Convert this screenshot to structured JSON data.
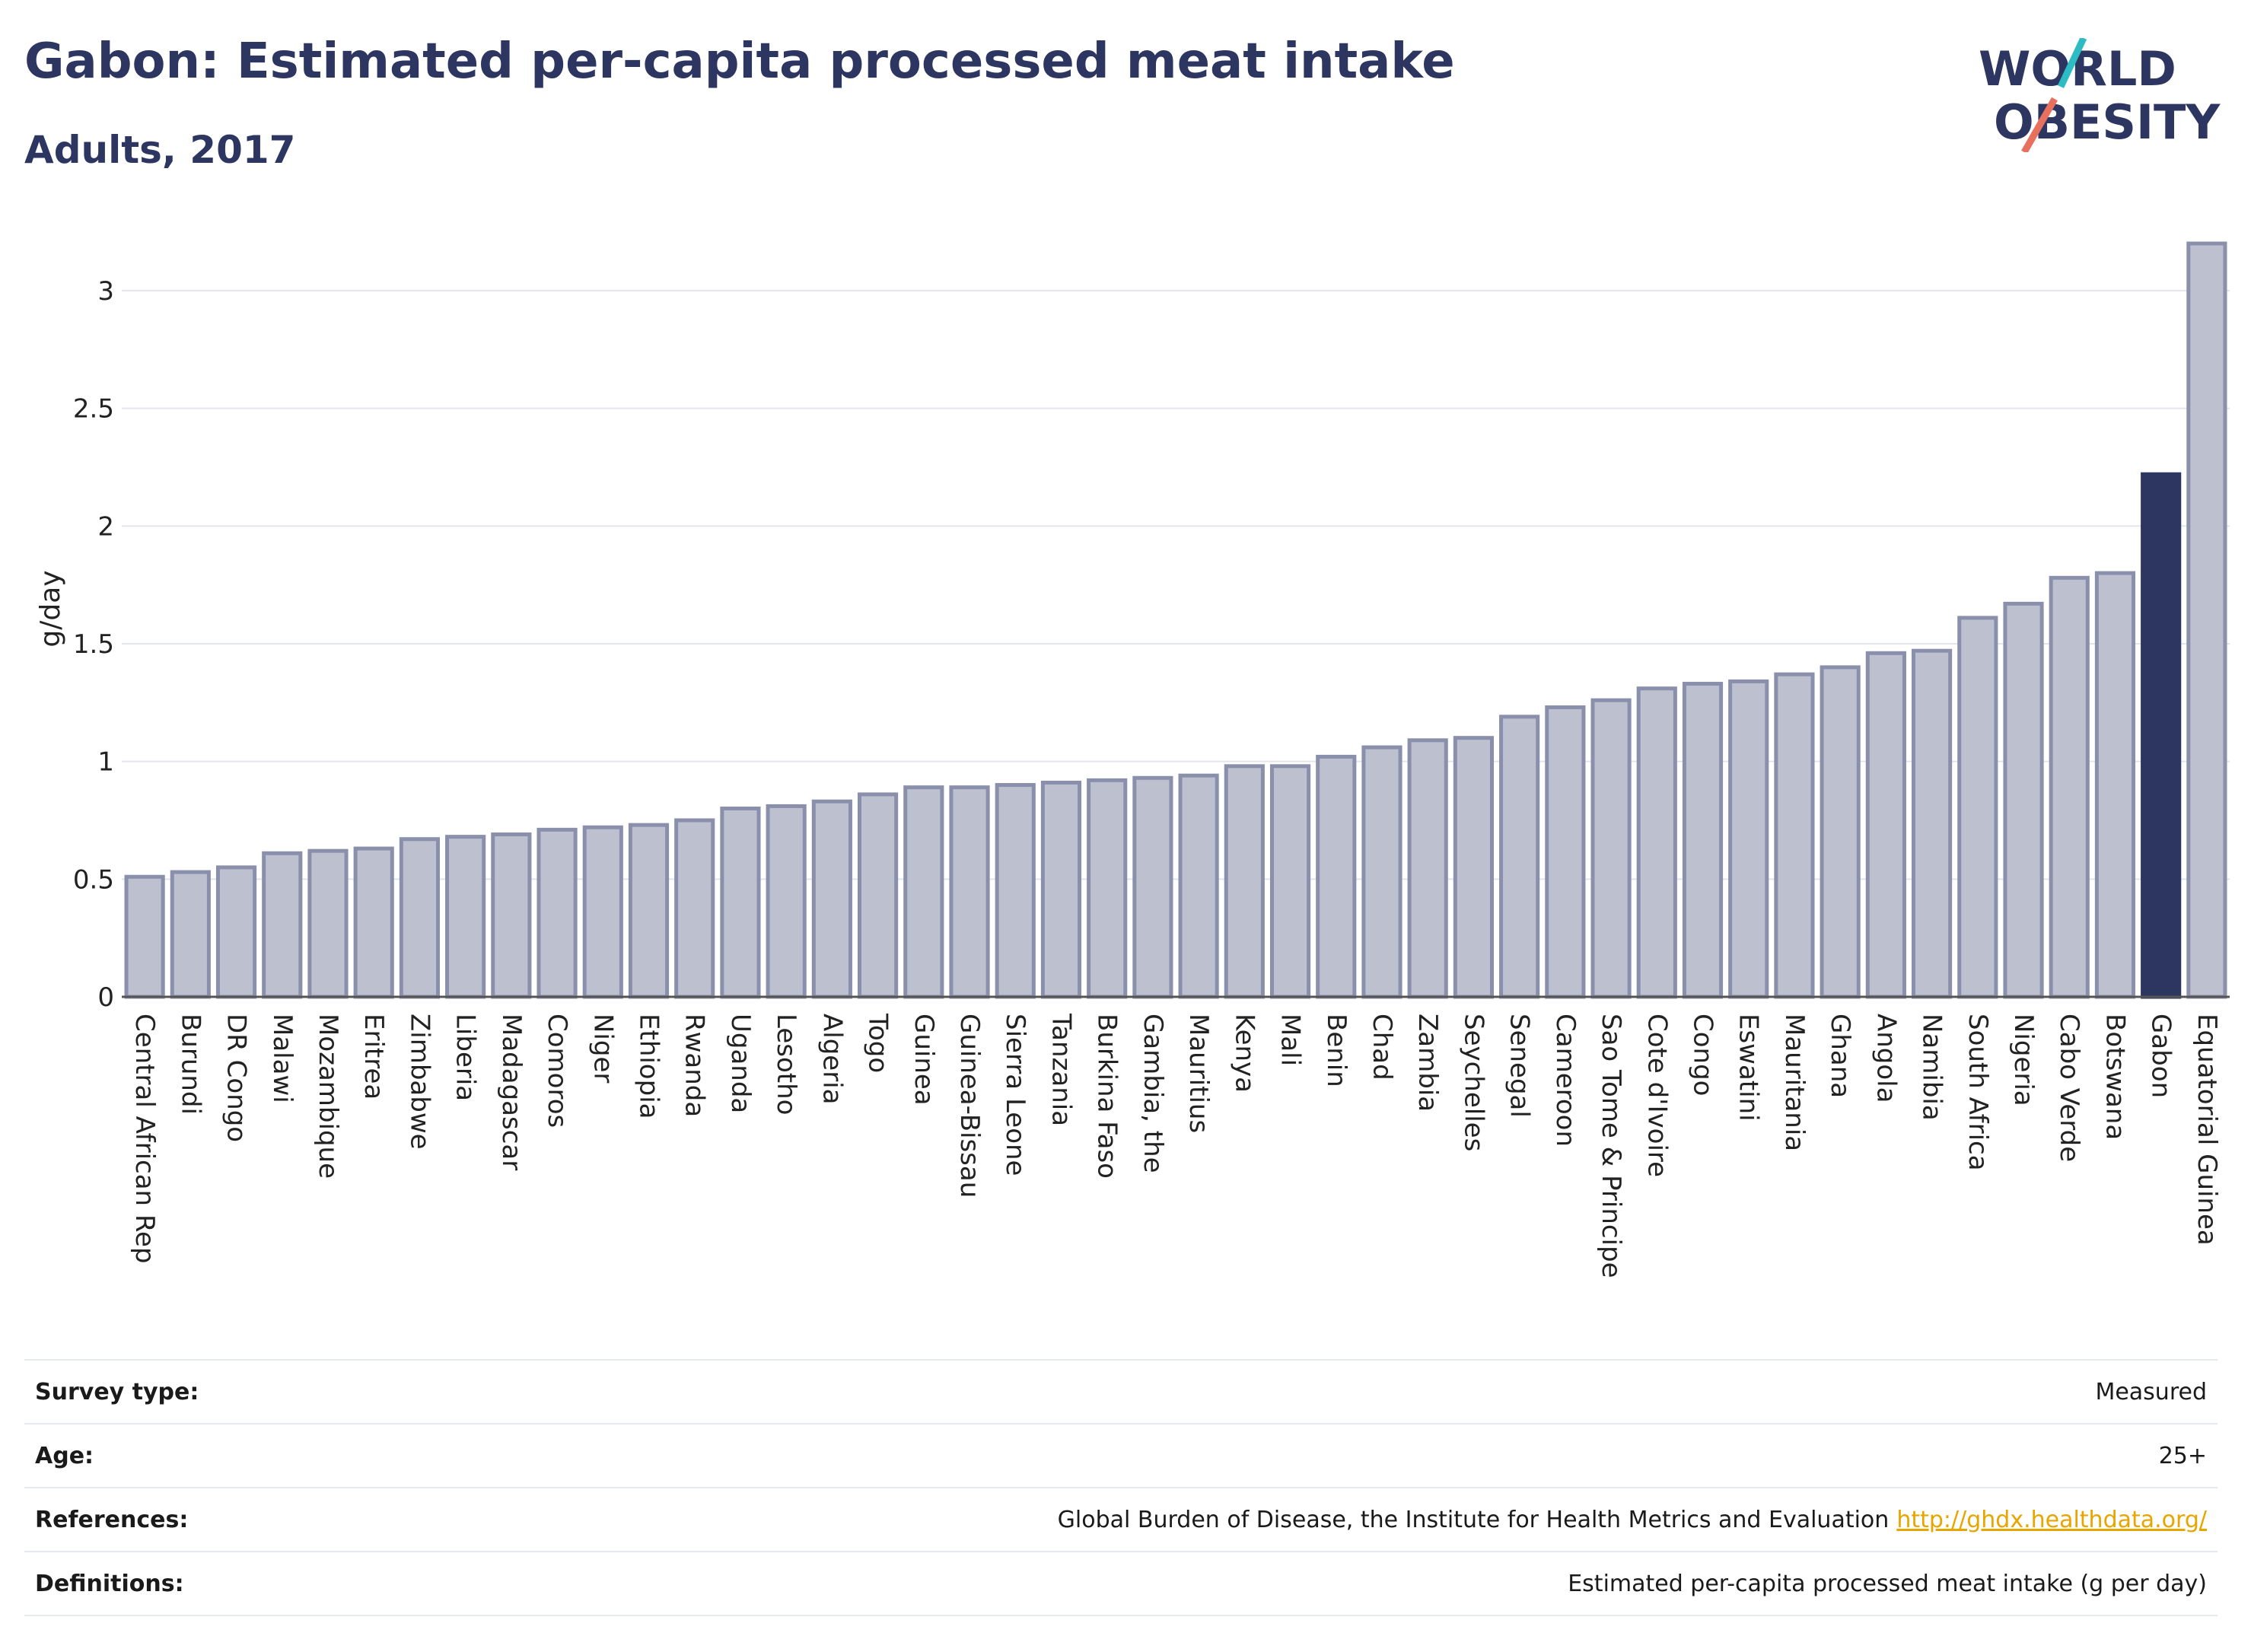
{
  "title": "Gabon: Estimated per-capita processed meat intake",
  "subtitle": "Adults, 2017",
  "logo": {
    "line1": "WORLD",
    "line2": "OBESITY"
  },
  "colors": {
    "bar": "#bcc0cf",
    "bar_border": "#8a90ab",
    "highlight": "#2d3561",
    "grid": "#e3e5ec"
  },
  "chart_data": {
    "type": "bar",
    "ylabel": "g/day",
    "ylim": [
      0,
      3.2
    ],
    "yticks": [
      0,
      0.5,
      1,
      1.5,
      2,
      2.5,
      3
    ],
    "highlight": "Gabon",
    "categories": [
      "Central African Rep",
      "Burundi",
      "DR Congo",
      "Malawi",
      "Mozambique",
      "Eritrea",
      "Zimbabwe",
      "Liberia",
      "Madagascar",
      "Comoros",
      "Niger",
      "Ethiopia",
      "Rwanda",
      "Uganda",
      "Lesotho",
      "Algeria",
      "Togo",
      "Guinea",
      "Guinea-Bissau",
      "Sierra Leone",
      "Tanzania",
      "Burkina Faso",
      "Gambia, the",
      "Mauritius",
      "Kenya",
      "Mali",
      "Benin",
      "Chad",
      "Zambia",
      "Seychelles",
      "Senegal",
      "Cameroon",
      "Sao Tome & Principe",
      "Cote d'Ivoire",
      "Congo",
      "Eswatini",
      "Mauritania",
      "Ghana",
      "Angola",
      "Namibia",
      "South Africa",
      "Nigeria",
      "Cabo Verde",
      "Botswana",
      "Gabon",
      "Equatorial Guinea"
    ],
    "values": [
      0.51,
      0.53,
      0.55,
      0.61,
      0.62,
      0.63,
      0.67,
      0.68,
      0.69,
      0.71,
      0.72,
      0.73,
      0.75,
      0.8,
      0.81,
      0.83,
      0.86,
      0.89,
      0.89,
      0.9,
      0.91,
      0.92,
      0.93,
      0.94,
      0.98,
      0.98,
      1.02,
      1.06,
      1.09,
      1.1,
      1.19,
      1.23,
      1.26,
      1.31,
      1.33,
      1.34,
      1.37,
      1.4,
      1.46,
      1.47,
      1.61,
      1.67,
      1.78,
      1.8,
      2.22,
      3.2
    ]
  },
  "meta": [
    {
      "key": "Survey type:",
      "value": "Measured"
    },
    {
      "key": "Age:",
      "value": "25+"
    },
    {
      "key": "References:",
      "value": "Global Burden of Disease, the Institute for Health Metrics and Evaluation",
      "link": "http://ghdx.healthdata.org/"
    },
    {
      "key": "Definitions:",
      "value": "Estimated per-capita processed meat intake (g per day)"
    }
  ]
}
